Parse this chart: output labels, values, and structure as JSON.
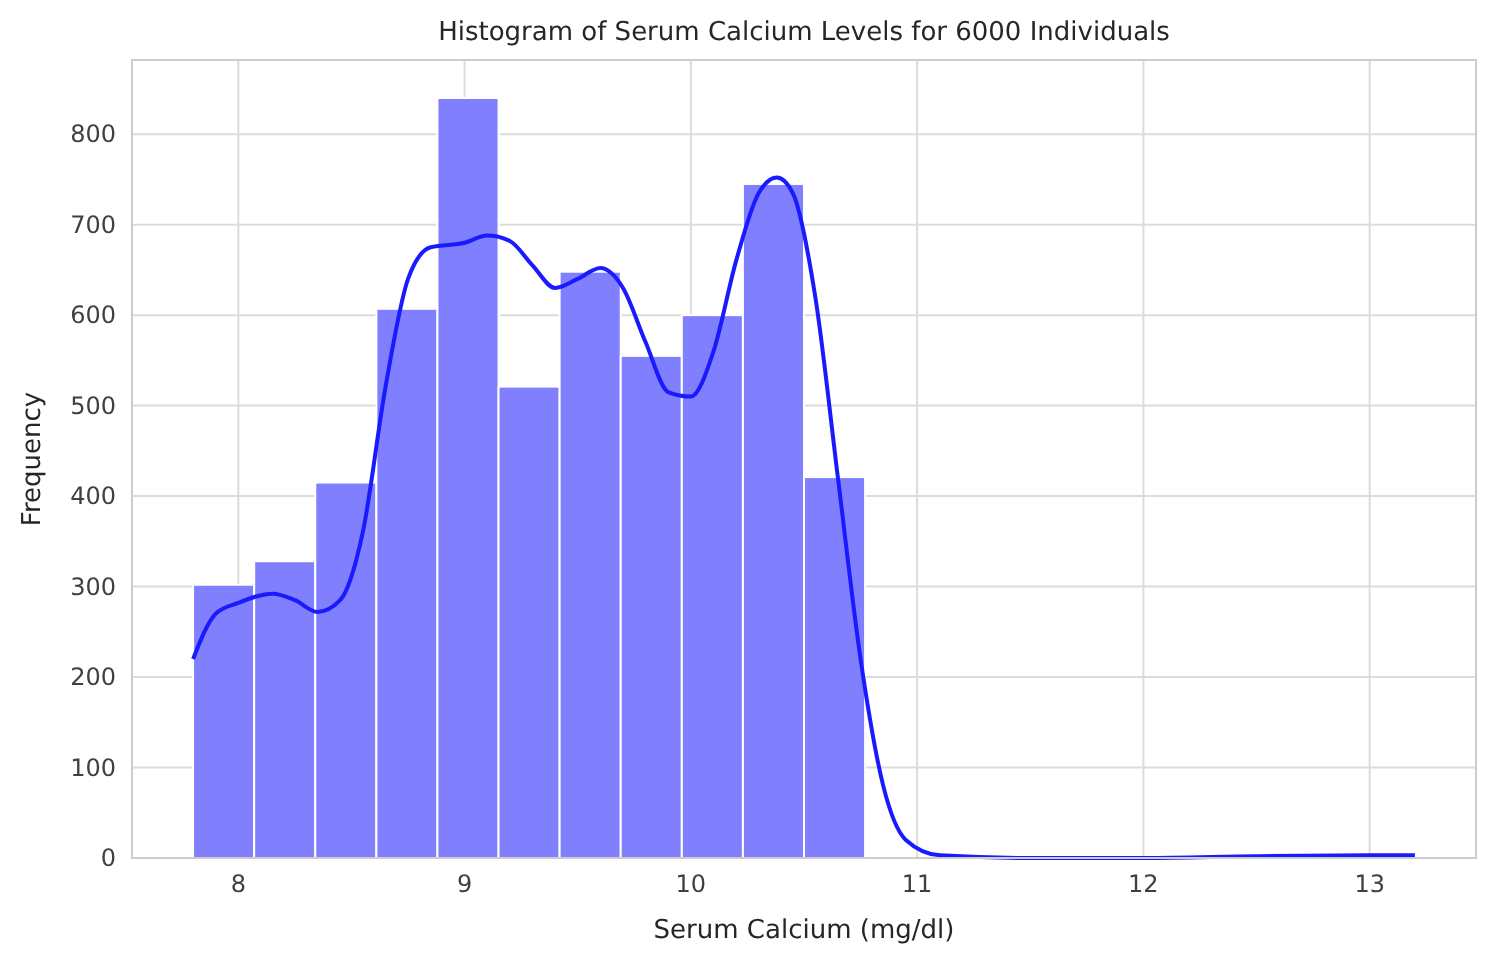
{
  "chart_data": {
    "type": "histogram",
    "title": "Histogram of Serum Calcium Levels for 6000 Individuals",
    "xlabel": "Serum Calcium (mg/dl)",
    "ylabel": "Frequency",
    "bins": [
      7.8,
      8.07,
      8.34,
      8.61,
      8.88,
      9.15,
      9.42,
      9.69,
      9.96,
      10.23,
      10.5,
      10.77,
      11.04,
      11.31,
      11.58,
      11.85,
      12.12,
      12.39,
      12.66,
      12.93,
      13.2
    ],
    "values": [
      302,
      328,
      415,
      607,
      840,
      521,
      648,
      555,
      600,
      745,
      421,
      0,
      0,
      0,
      0,
      0,
      0,
      0,
      0,
      0
    ],
    "color": "#8080ff",
    "series": [
      {
        "type": "line",
        "color": "#1a1aff",
        "x": [
          7.8,
          7.9,
          8.0,
          8.15,
          8.25,
          8.35,
          8.45,
          8.55,
          8.65,
          8.75,
          8.85,
          9.0,
          9.1,
          9.2,
          9.3,
          9.4,
          9.5,
          9.6,
          9.7,
          9.8,
          9.9,
          10.0,
          10.1,
          10.2,
          10.3,
          10.38,
          10.45,
          10.55,
          10.65,
          10.75,
          10.85,
          10.95,
          11.1,
          11.5,
          12.0,
          12.5,
          13.0,
          13.2
        ],
        "values": [
          220,
          270,
          282,
          292,
          285,
          272,
          285,
          360,
          520,
          640,
          675,
          680,
          688,
          682,
          655,
          630,
          640,
          652,
          630,
          570,
          515,
          510,
          560,
          660,
          735,
          752,
          735,
          620,
          420,
          220,
          80,
          20,
          3,
          0,
          0,
          2,
          3,
          3
        ]
      }
    ],
    "xlim": [
      7.53,
      13.47
    ],
    "xticks": [
      8,
      9,
      10,
      11,
      12,
      13
    ],
    "ylim": [
      0,
      882
    ],
    "yticks": [
      0,
      100,
      200,
      300,
      400,
      500,
      600,
      700,
      800
    ],
    "grid": true,
    "line_style": "solid",
    "marker": "none"
  }
}
